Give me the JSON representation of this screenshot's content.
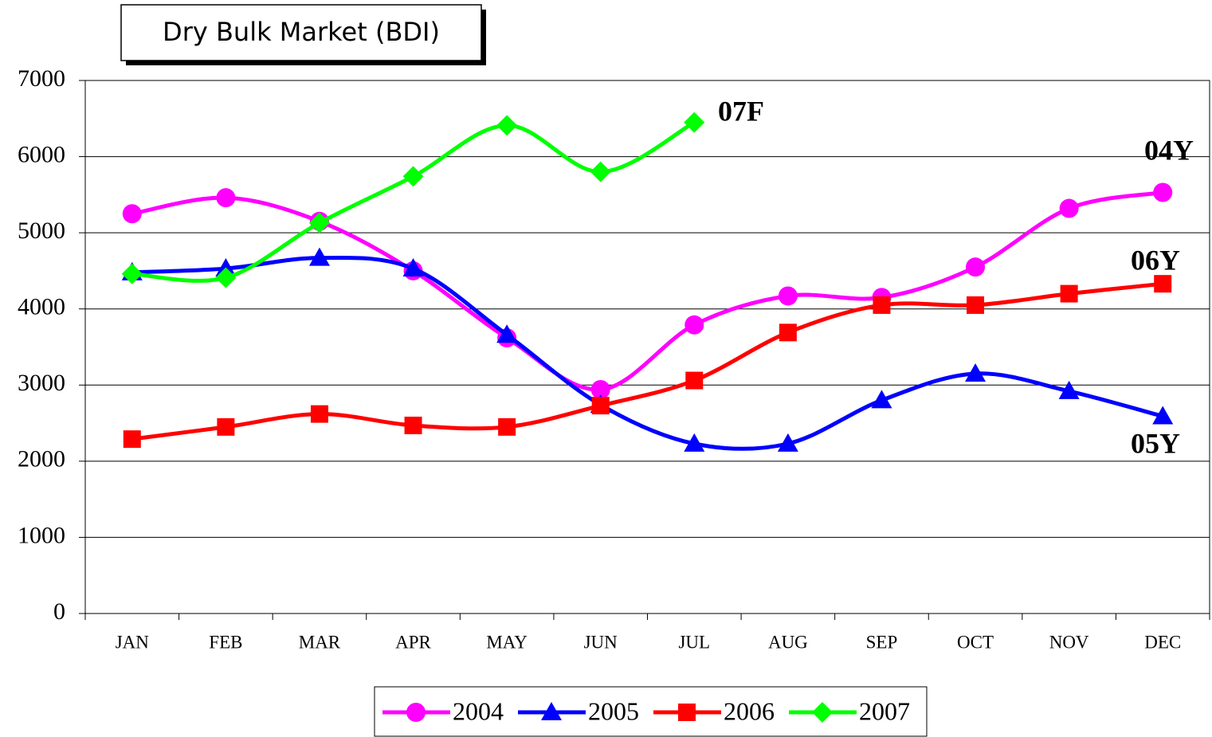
{
  "chart_data": {
    "type": "line",
    "title": "Dry Bulk Market (BDI)",
    "categories": [
      "JAN",
      "FEB",
      "MAR",
      "APR",
      "MAY",
      "JUN",
      "JUL",
      "AUG",
      "SEP",
      "OCT",
      "NOV",
      "DEC"
    ],
    "series": [
      {
        "name": "2004",
        "color": "#ff00ff",
        "marker": "circle",
        "values": [
          5250,
          5460,
          5150,
          4500,
          3620,
          2940,
          3790,
          4170,
          4150,
          4550,
          5320,
          5530
        ]
      },
      {
        "name": "2005",
        "color": "#0000ff",
        "marker": "triangle",
        "values": [
          4480,
          4530,
          4670,
          4530,
          3660,
          2740,
          2230,
          2230,
          2800,
          3150,
          2920,
          2590
        ]
      },
      {
        "name": "2006",
        "color": "#ff0000",
        "marker": "square",
        "values": [
          2290,
          2450,
          2620,
          2470,
          2450,
          2730,
          3060,
          3690,
          4050,
          4050,
          4200,
          4330
        ]
      },
      {
        "name": "2007",
        "color": "#00ff00",
        "marker": "diamond",
        "values": [
          4460,
          4410,
          5130,
          5740,
          6410,
          5800,
          6450,
          null,
          null,
          null,
          null,
          null
        ]
      }
    ],
    "annotations": [
      "07F",
      "04Y",
      "06Y",
      "05Y"
    ],
    "ylim": [
      0,
      7000
    ],
    "yticks": [
      0,
      1000,
      2000,
      3000,
      4000,
      5000,
      6000,
      7000
    ],
    "grid": true,
    "legend": "bottom"
  }
}
